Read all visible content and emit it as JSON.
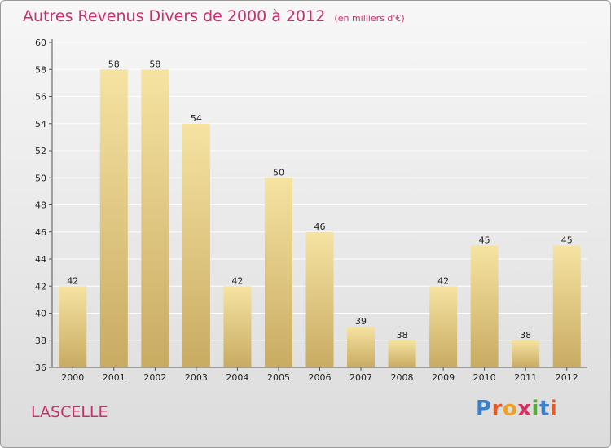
{
  "header": {
    "title": "Autres Revenus Divers de 2000 à 2012",
    "unit": "(en milliers d'€)"
  },
  "footer": {
    "place": "LASCELLE",
    "brand": "Proxiti",
    "brand_letters": [
      {
        "ch": "P",
        "color": "#3a7fc8"
      },
      {
        "ch": "r",
        "color": "#e05a2a"
      },
      {
        "ch": "o",
        "color": "#f0a020"
      },
      {
        "ch": "x",
        "color": "#d43060"
      },
      {
        "ch": "i",
        "color": "#5aa83a"
      },
      {
        "ch": "t",
        "color": "#3a7fc8"
      },
      {
        "ch": "i",
        "color": "#e05a2a"
      }
    ]
  },
  "colors": {
    "title": "#c8306e",
    "bar_light": "#f6e3a2",
    "bar_dark": "#c9ab62",
    "axis": "#555555",
    "grid": "#ffffff"
  },
  "chart_data": {
    "type": "bar",
    "categories": [
      "2000",
      "2001",
      "2002",
      "2003",
      "2004",
      "2005",
      "2006",
      "2007",
      "2008",
      "2009",
      "2010",
      "2011",
      "2012"
    ],
    "values": [
      42,
      58,
      58,
      54,
      42,
      50,
      46,
      39,
      38,
      42,
      45,
      38,
      45
    ],
    "data_labels": [
      "42",
      "58",
      "58",
      "54",
      "42",
      "50",
      "46",
      "39",
      "38",
      "42",
      "45",
      "38",
      "45"
    ],
    "ylim": [
      36,
      60
    ],
    "yticks": [
      36,
      38,
      40,
      42,
      44,
      46,
      48,
      50,
      52,
      54,
      56,
      58,
      60
    ],
    "grid": true,
    "legend": "none"
  }
}
